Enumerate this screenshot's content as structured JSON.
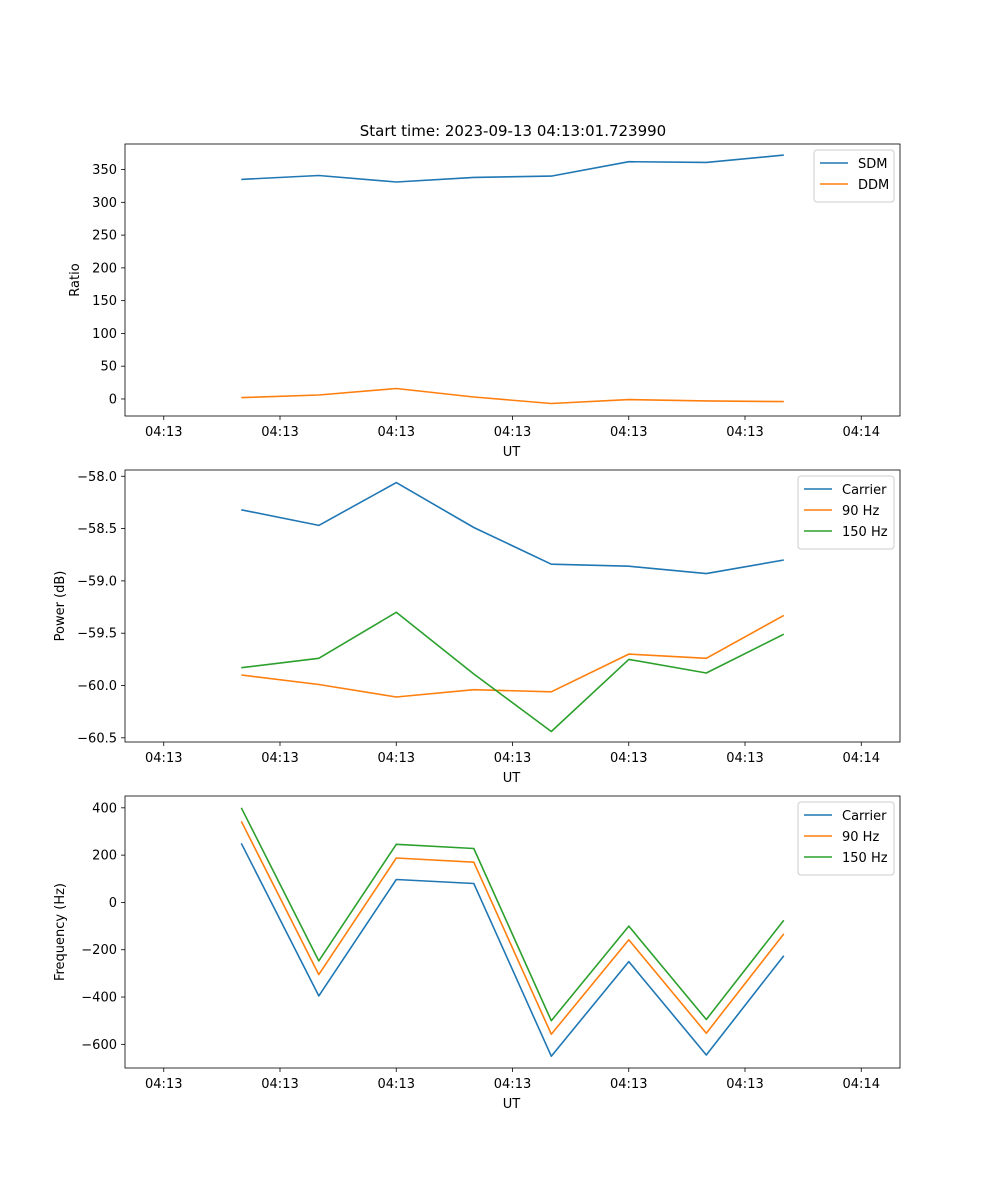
{
  "title": "Start time: 2023-09-13 04:13:01.723990",
  "colors": {
    "blue": "#1f77b4",
    "orange": "#ff7f0e",
    "green": "#2ca02c"
  },
  "chart_data": [
    {
      "type": "line",
      "id": "ratio",
      "xlabel": "UT",
      "ylabel": "Ratio",
      "xticks": [
        "04:13",
        "04:13",
        "04:13",
        "04:13",
        "04:13",
        "04:13",
        "04:14"
      ],
      "xlim": [
        -0.5,
        9.5
      ],
      "x": [
        1,
        2,
        3,
        4,
        5,
        6,
        7,
        8
      ],
      "ylim": [
        -26,
        389
      ],
      "yticks": [
        0,
        50,
        100,
        150,
        200,
        250,
        300,
        350
      ],
      "legend": "top-right",
      "series": [
        {
          "name": "SDM",
          "color": "#1f77b4",
          "values": [
            335,
            341,
            331,
            338,
            340,
            362,
            361,
            372
          ]
        },
        {
          "name": "DDM",
          "color": "#ff7f0e",
          "values": [
            2,
            6,
            16,
            3,
            -7,
            -1,
            -3,
            -4
          ]
        }
      ]
    },
    {
      "type": "line",
      "id": "power",
      "xlabel": "UT",
      "ylabel": "Power (dB)",
      "xticks": [
        "04:13",
        "04:13",
        "04:13",
        "04:13",
        "04:13",
        "04:13",
        "04:14"
      ],
      "xlim": [
        -0.5,
        9.5
      ],
      "x": [
        1,
        2,
        3,
        4,
        5,
        6,
        7,
        8
      ],
      "ylim": [
        -60.54,
        -57.94
      ],
      "yticks": [
        -58.0,
        -58.5,
        -59.0,
        -59.5,
        -60.0,
        -60.5
      ],
      "legend": "top-right",
      "series": [
        {
          "name": "Carrier",
          "color": "#1f77b4",
          "values": [
            -58.32,
            -58.47,
            -58.06,
            -58.49,
            -58.84,
            -58.86,
            -58.93,
            -58.8
          ]
        },
        {
          "name": "90 Hz",
          "color": "#ff7f0e",
          "values": [
            -59.9,
            -59.99,
            -60.11,
            -60.04,
            -60.06,
            -59.7,
            -59.74,
            -59.33
          ]
        },
        {
          "name": "150 Hz",
          "color": "#2ca02c",
          "values": [
            -59.83,
            -59.74,
            -59.3,
            -59.89,
            -60.44,
            -59.75,
            -59.88,
            -59.51
          ]
        }
      ]
    },
    {
      "type": "line",
      "id": "frequency",
      "xlabel": "UT",
      "ylabel": "Frequency (Hz)",
      "xticks": [
        "04:13",
        "04:13",
        "04:13",
        "04:13",
        "04:13",
        "04:13",
        "04:14"
      ],
      "xlim": [
        -0.5,
        9.5
      ],
      "x": [
        1,
        2,
        3,
        4,
        5,
        6,
        7,
        8
      ],
      "ylim": [
        -700,
        450
      ],
      "yticks": [
        400,
        200,
        0,
        -200,
        -400,
        -600
      ],
      "legend": "top-right",
      "series": [
        {
          "name": "Carrier",
          "color": "#1f77b4",
          "values": [
            250,
            -395,
            97,
            80,
            -650,
            -250,
            -645,
            -225
          ]
        },
        {
          "name": "90 Hz",
          "color": "#ff7f0e",
          "values": [
            343,
            -305,
            188,
            170,
            -557,
            -158,
            -553,
            -133
          ]
        },
        {
          "name": "150 Hz",
          "color": "#2ca02c",
          "values": [
            400,
            -247,
            246,
            228,
            -500,
            -100,
            -495,
            -75
          ]
        }
      ]
    }
  ]
}
